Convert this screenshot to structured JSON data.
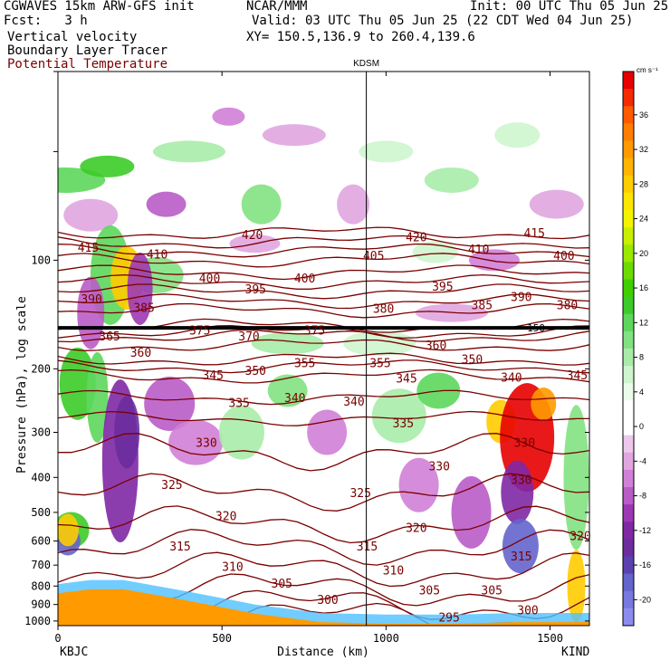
{
  "header": {
    "model": "CGWAVES 15km ARW-GFS init",
    "org": "NCAR/MMM",
    "init": "Init: 00 UTC Thu 05 Jun 25",
    "fcst": "Fcst:   3 h",
    "valid": "Valid: 03 UTC Thu 05 Jun 25 (22 CDT Wed 04 Jun 25)",
    "field1": "Vertical velocity",
    "field2": "Boundary Layer Tracer",
    "field3": "Potential Temperature",
    "xy": "XY= 150.5,136.9 to 260.4,139.6"
  },
  "colors": {
    "theta": "#7a0000",
    "field3_text": "#7a0000",
    "tropopause": "#000000"
  },
  "chart_data": {
    "type": "heatmap",
    "title": "",
    "xlabel": "Distance (km)",
    "ylabel": "Pressure (hPa), log scale",
    "x_scale": "linear",
    "y_scale": "log",
    "xlim": [
      0,
      1620
    ],
    "ylim": [
      1030,
      30
    ],
    "x_ticks": [
      0,
      500,
      1000,
      1500
    ],
    "x_tick_labels": [
      "0",
      "500",
      "1000",
      "1500"
    ],
    "y_ticks": [
      100,
      200,
      300,
      400,
      500,
      600,
      700,
      800,
      900,
      1000
    ],
    "y_tick_labels": [
      "100",
      "200",
      "300",
      "400",
      "500",
      "600",
      "700",
      "800",
      "900",
      "1000"
    ],
    "station_marker": {
      "label": "KDSM",
      "x": 940
    },
    "endpoint_labels": {
      "left": "KBJC",
      "right": "KIND"
    },
    "colorbar": {
      "unit": "cm s⁻¹",
      "levels": [
        40,
        38,
        36,
        34,
        32,
        30,
        28,
        26,
        24,
        22,
        20,
        18,
        16,
        14,
        12,
        10,
        8,
        6,
        4,
        2,
        0,
        -2,
        -4,
        -6,
        -8,
        -10,
        -12,
        -14,
        -16,
        -18,
        -20,
        -22
      ],
      "colors": [
        "#e80000",
        "#f52a00",
        "#ff5a00",
        "#ff7e00",
        "#ff9a00",
        "#ffb400",
        "#ffcc00",
        "#ffe600",
        "#f4f400",
        "#c8f000",
        "#9be800",
        "#6cdc00",
        "#40d000",
        "#3ccb28",
        "#5cd75c",
        "#82e282",
        "#a8eca8",
        "#cef5ce",
        "#ecfcec",
        "#ffffff",
        "#ffffff",
        "#ecc8ec",
        "#e0a6e0",
        "#d080d6",
        "#b95cc8",
        "#9c38b4",
        "#8028a4",
        "#6c2c9e",
        "#5c40b0",
        "#6464cc",
        "#7878e0",
        "#8c8cf0"
      ],
      "tick_labels": [
        "36",
        "32",
        "28",
        "24",
        "20",
        "16",
        "12",
        "8",
        "4",
        "0",
        "-4",
        "-8",
        "-12",
        "-16",
        "-20"
      ],
      "tick_values": [
        36,
        32,
        28,
        24,
        20,
        16,
        12,
        8,
        4,
        0,
        -4,
        -8,
        -12,
        -16,
        -20
      ]
    },
    "theta_labels": [
      {
        "text": "415",
        "x": 60,
        "p": 92
      },
      {
        "text": "410",
        "x": 270,
        "p": 96
      },
      {
        "text": "420",
        "x": 560,
        "p": 85
      },
      {
        "text": "405",
        "x": 930,
        "p": 97
      },
      {
        "text": "420",
        "x": 1060,
        "p": 86
      },
      {
        "text": "410",
        "x": 1250,
        "p": 93
      },
      {
        "text": "415",
        "x": 1420,
        "p": 84
      },
      {
        "text": "400",
        "x": 1510,
        "p": 97
      },
      {
        "text": "390",
        "x": 70,
        "p": 128
      },
      {
        "text": "400",
        "x": 430,
        "p": 112
      },
      {
        "text": "395",
        "x": 570,
        "p": 120
      },
      {
        "text": "400",
        "x": 720,
        "p": 112
      },
      {
        "text": "385",
        "x": 230,
        "p": 135
      },
      {
        "text": "380",
        "x": 960,
        "p": 136
      },
      {
        "text": "395",
        "x": 1140,
        "p": 118
      },
      {
        "text": "385",
        "x": 1260,
        "p": 133
      },
      {
        "text": "390",
        "x": 1380,
        "p": 126
      },
      {
        "text": "380",
        "x": 1520,
        "p": 133
      },
      {
        "text": "375",
        "x": 400,
        "p": 156
      },
      {
        "text": "370",
        "x": 550,
        "p": 162
      },
      {
        "text": "375",
        "x": 750,
        "p": 156
      },
      {
        "text": "360",
        "x": 220,
        "p": 180
      },
      {
        "text": "360",
        "x": 1120,
        "p": 172
      },
      {
        "text": "350",
        "x": 1230,
        "p": 188
      },
      {
        "text": "345",
        "x": 440,
        "p": 208
      },
      {
        "text": "350",
        "x": 570,
        "p": 202
      },
      {
        "text": "355",
        "x": 720,
        "p": 192
      },
      {
        "text": "355",
        "x": 950,
        "p": 192
      },
      {
        "text": "345",
        "x": 1030,
        "p": 212
      },
      {
        "text": "340",
        "x": 1350,
        "p": 211
      },
      {
        "text": "345",
        "x": 1550,
        "p": 208
      },
      {
        "text": "335",
        "x": 520,
        "p": 248
      },
      {
        "text": "340",
        "x": 690,
        "p": 240
      },
      {
        "text": "340",
        "x": 870,
        "p": 246
      },
      {
        "text": "335",
        "x": 1020,
        "p": 282
      },
      {
        "text": "330",
        "x": 420,
        "p": 320
      },
      {
        "text": "330",
        "x": 1130,
        "p": 372
      },
      {
        "text": "325",
        "x": 315,
        "p": 418
      },
      {
        "text": "325",
        "x": 890,
        "p": 440
      },
      {
        "text": "320",
        "x": 480,
        "p": 510
      },
      {
        "text": "320",
        "x": 1060,
        "p": 550
      },
      {
        "text": "315",
        "x": 340,
        "p": 620
      },
      {
        "text": "315",
        "x": 910,
        "p": 620
      },
      {
        "text": "320",
        "x": 1560,
        "p": 580
      },
      {
        "text": "315",
        "x": 1380,
        "p": 660
      },
      {
        "text": "310",
        "x": 500,
        "p": 705
      },
      {
        "text": "310",
        "x": 990,
        "p": 722
      },
      {
        "text": "305",
        "x": 650,
        "p": 785
      },
      {
        "text": "305",
        "x": 1100,
        "p": 820
      },
      {
        "text": "305",
        "x": 1290,
        "p": 820
      },
      {
        "text": "300",
        "x": 790,
        "p": 870
      },
      {
        "text": "300",
        "x": 1400,
        "p": 930
      },
      {
        "text": "295",
        "x": 1160,
        "p": 975
      },
      {
        "text": "330",
        "x": 1390,
        "p": 320
      },
      {
        "text": "330",
        "x": 1380,
        "p": 405
      },
      {
        "text": "365",
        "x": 125,
        "p": 162
      }
    ],
    "theta_lines": [
      295,
      300,
      305,
      310,
      315,
      320,
      325,
      330,
      335,
      340,
      345,
      350,
      355,
      360,
      365,
      370,
      375,
      380,
      385,
      390,
      395,
      400,
      405,
      410,
      415,
      420
    ],
    "tropopause_label": {
      "text": "150",
      "x": 1430,
      "p": 154
    }
  }
}
